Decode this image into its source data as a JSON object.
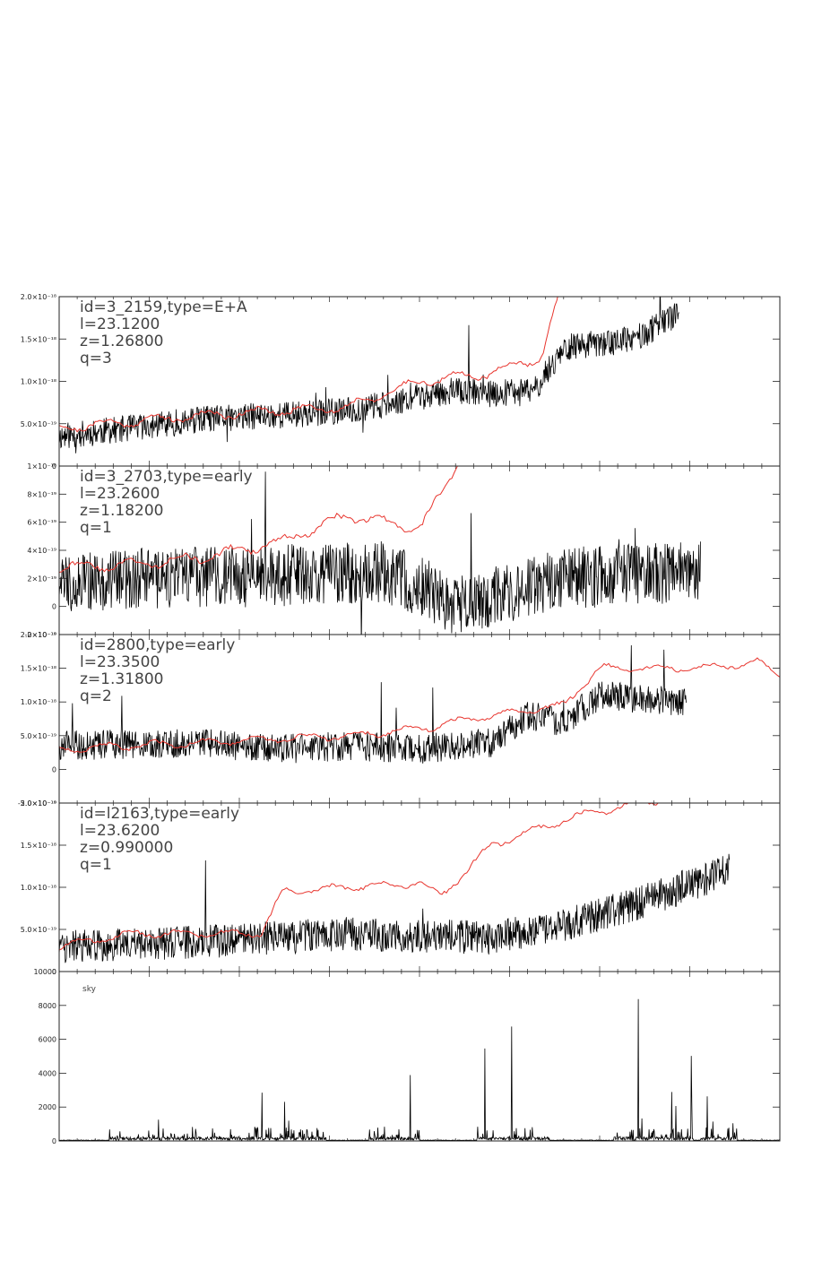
{
  "chart_data": [
    {
      "type": "line",
      "panel": "spectrum",
      "info": [
        "id=3_2159,type=E+A",
        "l=23.1200",
        "z=1.26800",
        "q=3"
      ],
      "yticks": [
        {
          "v": 0,
          "label": "0"
        },
        {
          "v": 0.5,
          "label": "5.0×10⁻¹⁹"
        },
        {
          "v": 1.0,
          "label": "1.0×10⁻¹⁸"
        },
        {
          "v": 1.5,
          "label": "1.5×10⁻¹⁸"
        },
        {
          "v": 2.0,
          "label": "2.0×10⁻¹⁸"
        }
      ],
      "ylim": [
        0,
        2.0
      ],
      "series": [
        {
          "role": "observed",
          "color": "#000000",
          "seed": 11,
          "end": 0.86,
          "noise": 0.16,
          "trend": [
            [
              0,
              0.35
            ],
            [
              0.2,
              0.55
            ],
            [
              0.4,
              0.65
            ],
            [
              0.55,
              0.9
            ],
            [
              0.6,
              0.85
            ],
            [
              0.66,
              0.9
            ],
            [
              0.7,
              1.4
            ],
            [
              0.8,
              1.5
            ],
            [
              0.86,
              1.8
            ]
          ]
        },
        {
          "role": "template",
          "color": "#e8352e",
          "seed": 21,
          "end": 1.0,
          "noise": 0.05,
          "trend": [
            [
              0,
              0.45
            ],
            [
              0.2,
              0.6
            ],
            [
              0.4,
              0.7
            ],
            [
              0.5,
              1.0
            ],
            [
              0.6,
              1.1
            ],
            [
              0.67,
              1.3
            ],
            [
              0.7,
              2.2
            ],
            [
              1.0,
              2.4
            ]
          ]
        }
      ]
    },
    {
      "type": "line",
      "panel": "spectrum",
      "info": [
        "id=3_2703,type=early",
        "l=23.2600",
        "z=1.18200",
        "q=1"
      ],
      "yticks": [
        {
          "v": -2,
          "label": "-2×10⁻¹⁹"
        },
        {
          "v": 0,
          "label": "0"
        },
        {
          "v": 2,
          "label": "2×10⁻¹⁹"
        },
        {
          "v": 4,
          "label": "4×10⁻¹⁹"
        },
        {
          "v": 6,
          "label": "6×10⁻¹⁹"
        },
        {
          "v": 8,
          "label": "8×10⁻¹⁹"
        },
        {
          "v": 10,
          "label": "1×10⁻¹⁸"
        }
      ],
      "ylim": [
        -2,
        10
      ],
      "series": [
        {
          "role": "observed",
          "color": "#000000",
          "seed": 33,
          "end": 0.89,
          "noise": 2.2,
          "trend": [
            [
              0,
              1.8
            ],
            [
              0.3,
              2.2
            ],
            [
              0.45,
              2.5
            ],
            [
              0.5,
              1.5
            ],
            [
              0.55,
              0.0
            ],
            [
              0.7,
              2.0
            ],
            [
              0.89,
              2.5
            ]
          ]
        },
        {
          "role": "template",
          "color": "#e8352e",
          "seed": 43,
          "end": 0.57,
          "noise": 0.35,
          "trend": [
            [
              0,
              2.8
            ],
            [
              0.1,
              3.0
            ],
            [
              0.2,
              3.5
            ],
            [
              0.3,
              4.5
            ],
            [
              0.4,
              6.5
            ],
            [
              0.5,
              5.5
            ],
            [
              0.53,
              8.0
            ],
            [
              0.57,
              12
            ]
          ]
        }
      ]
    },
    {
      "type": "line",
      "panel": "spectrum",
      "info": [
        "id=2800,type=early",
        "l=23.3500",
        "z=1.31800",
        "q=2"
      ],
      "yticks": [
        {
          "v": -0.5,
          "label": "-5.0×10⁻¹⁹"
        },
        {
          "v": 0,
          "label": "0"
        },
        {
          "v": 0.5,
          "label": "5.0×10⁻¹⁹"
        },
        {
          "v": 1.0,
          "label": "1.0×10⁻¹⁸"
        },
        {
          "v": 1.5,
          "label": "1.5×10⁻¹⁸"
        },
        {
          "v": 2.0,
          "label": "2.0×10⁻¹⁸"
        }
      ],
      "ylim": [
        -0.5,
        2.0
      ],
      "series": [
        {
          "role": "observed",
          "color": "#000000",
          "seed": 55,
          "end": 0.87,
          "noise": 0.22,
          "trend": [
            [
              0,
              0.35
            ],
            [
              0.2,
              0.4
            ],
            [
              0.3,
              0.3
            ],
            [
              0.4,
              0.35
            ],
            [
              0.5,
              0.3
            ],
            [
              0.6,
              0.4
            ],
            [
              0.65,
              0.8
            ],
            [
              0.7,
              0.7
            ],
            [
              0.75,
              1.1
            ],
            [
              0.87,
              1.0
            ]
          ]
        },
        {
          "role": "template",
          "color": "#e8352e",
          "seed": 65,
          "end": 1.0,
          "noise": 0.05,
          "trend": [
            [
              0,
              0.3
            ],
            [
              0.2,
              0.4
            ],
            [
              0.4,
              0.5
            ],
            [
              0.5,
              0.6
            ],
            [
              0.6,
              0.8
            ],
            [
              0.7,
              0.95
            ],
            [
              0.75,
              1.5
            ],
            [
              0.9,
              1.5
            ],
            [
              0.97,
              1.6
            ],
            [
              1.0,
              1.4
            ]
          ]
        }
      ]
    },
    {
      "type": "line",
      "panel": "spectrum",
      "info": [
        "id=l2163,type=early",
        "l=23.6200",
        "z=0.990000",
        "q=1"
      ],
      "yticks": [
        {
          "v": 0,
          "label": "0"
        },
        {
          "v": 0.5,
          "label": "5.0×10⁻¹⁹"
        },
        {
          "v": 1.0,
          "label": "1.0×10⁻¹⁸"
        },
        {
          "v": 1.5,
          "label": "1.5×10⁻¹⁸"
        },
        {
          "v": 2.0,
          "label": "2.0×10⁻¹⁸"
        }
      ],
      "ylim": [
        0,
        2.0
      ],
      "series": [
        {
          "role": "observed",
          "color": "#000000",
          "seed": 77,
          "end": 0.93,
          "noise": 0.2,
          "trend": [
            [
              0.05,
              0.3
            ],
            [
              0.2,
              0.35
            ],
            [
              0.3,
              0.4
            ],
            [
              0.4,
              0.45
            ],
            [
              0.6,
              0.4
            ],
            [
              0.7,
              0.55
            ],
            [
              0.8,
              0.8
            ],
            [
              0.93,
              1.2
            ]
          ]
        },
        {
          "role": "template",
          "color": "#e8352e",
          "seed": 87,
          "end": 1.0,
          "noise": 0.04,
          "trend": [
            [
              0,
              0.3
            ],
            [
              0.1,
              0.45
            ],
            [
              0.28,
              0.45
            ],
            [
              0.31,
              0.95
            ],
            [
              0.4,
              1.0
            ],
            [
              0.5,
              1.05
            ],
            [
              0.53,
              0.9
            ],
            [
              0.6,
              1.5
            ],
            [
              0.7,
              1.8
            ],
            [
              0.8,
              2.0
            ],
            [
              1.0,
              2.2
            ]
          ]
        }
      ]
    },
    {
      "type": "line",
      "panel": "sky",
      "label": "sky",
      "yticks": [
        {
          "v": 0,
          "label": "0"
        },
        {
          "v": 2000,
          "label": "2000"
        },
        {
          "v": 4000,
          "label": "4000"
        },
        {
          "v": 6000,
          "label": "6000"
        },
        {
          "v": 8000,
          "label": "8000"
        },
        {
          "v": 10000,
          "label": "10000"
        }
      ],
      "ylim": [
        0,
        10000
      ],
      "series": [
        {
          "role": "sky",
          "color": "#000000",
          "seed": 99,
          "bands": [
            [
              0.07,
              0.24,
              1800
            ],
            [
              0.24,
              0.37,
              3500
            ],
            [
              0.43,
              0.5,
              6000
            ],
            [
              0.58,
              0.68,
              8200
            ],
            [
              0.77,
              0.88,
              9000
            ],
            [
              0.89,
              0.94,
              4700
            ]
          ]
        }
      ]
    }
  ]
}
